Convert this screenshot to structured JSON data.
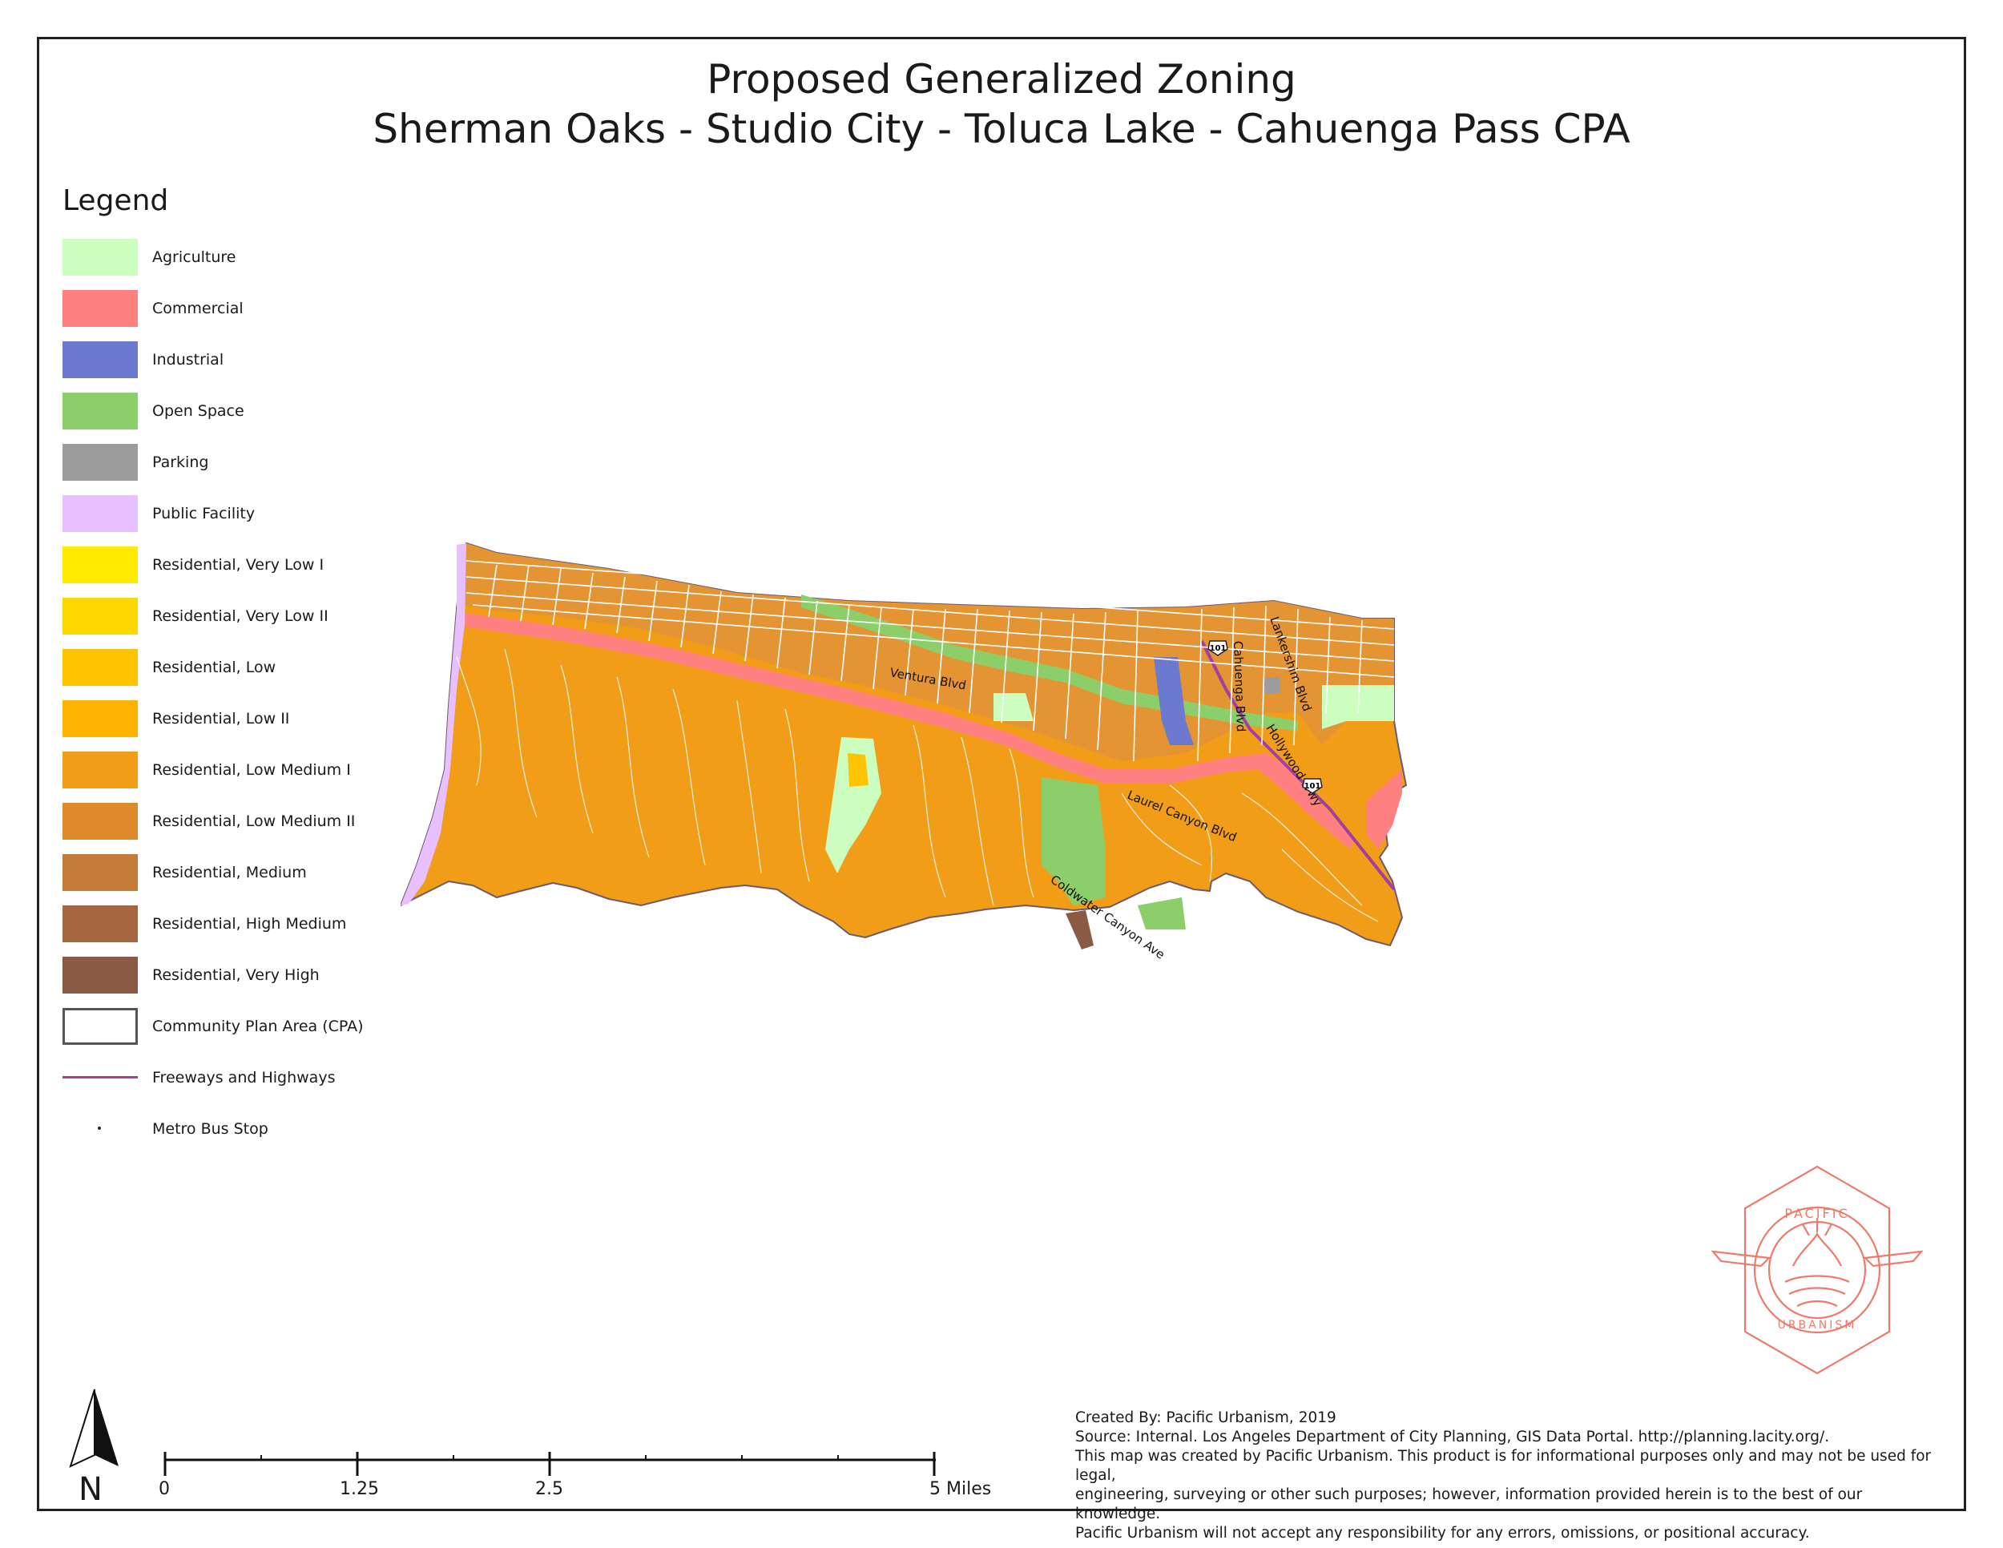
{
  "title": {
    "line1": "Proposed Generalized Zoning",
    "line2": "Sherman Oaks - Studio City - Toluca Lake - Cahuenga Pass CPA"
  },
  "legend": {
    "heading": "Legend",
    "items": [
      {
        "label": "Agriculture",
        "color": "#ccffbf"
      },
      {
        "label": "Commercial",
        "color": "#ff8080"
      },
      {
        "label": "Industrial",
        "color": "#6b79cf"
      },
      {
        "label": "Open Space",
        "color": "#8ccf6a"
      },
      {
        "label": "Parking",
        "color": "#9c9c9c"
      },
      {
        "label": "Public Facility",
        "color": "#e8bfff"
      },
      {
        "label": "Residential, Very Low I",
        "color": "#ffea00"
      },
      {
        "label": "Residential, Very Low II",
        "color": "#ffd700"
      },
      {
        "label": "Residential, Low",
        "color": "#ffc400"
      },
      {
        "label": "Residential, Low II",
        "color": "#ffb300"
      },
      {
        "label": "Residential, Low Medium I",
        "color": "#f29d18"
      },
      {
        "label": "Residential, Low Medium II",
        "color": "#de8a2a"
      },
      {
        "label": "Residential, Medium",
        "color": "#c47a38"
      },
      {
        "label": "Residential, High Medium",
        "color": "#a66640"
      },
      {
        "label": "Residential, Very High",
        "color": "#8a5a45"
      },
      {
        "label": "Community Plan Area (CPA)",
        "color": "#ffffff"
      },
      {
        "label": "Freeways and Highways",
        "color": "#a23fa0"
      },
      {
        "label": "Metro Bus Stop",
        "color": "#222222"
      }
    ]
  },
  "map_labels": {
    "ventura": "Ventura Blvd",
    "laurel": "Laurel Canyon Blvd",
    "coldwater": "Coldwater Canyon Ave",
    "hollywood": "Hollywood Frwy",
    "lankershim": "Lankershim Blvd",
    "cahuenga": "Cahuenga Blvd",
    "shield1": "101",
    "shield2": "101"
  },
  "north": {
    "label": "N"
  },
  "scale": {
    "tick0": "0",
    "tick1": "1.25",
    "tick2": "2.5",
    "tick3": "5 Miles"
  },
  "credits": {
    "created": "Created By: Pacific Urbanism, 2019",
    "source": "Source: Internal. Los Angeles Department of City Planning, GIS Data Portal. http://planning.lacity.org/.",
    "disclaimer1": "This map was created by Pacific Urbanism. This product is for informational purposes only and may not be used for legal,",
    "disclaimer2": "engineering, surveying or other such purposes; however, information provided herein is to the best of our knowledge.",
    "disclaimer3": "Pacific Urbanism will not accept any responsibility for any errors, omissions, or positional accuracy."
  },
  "logo": {
    "top_text": "PACIFIC",
    "bottom_text": "URBANISM",
    "color": "#f07a6a"
  }
}
